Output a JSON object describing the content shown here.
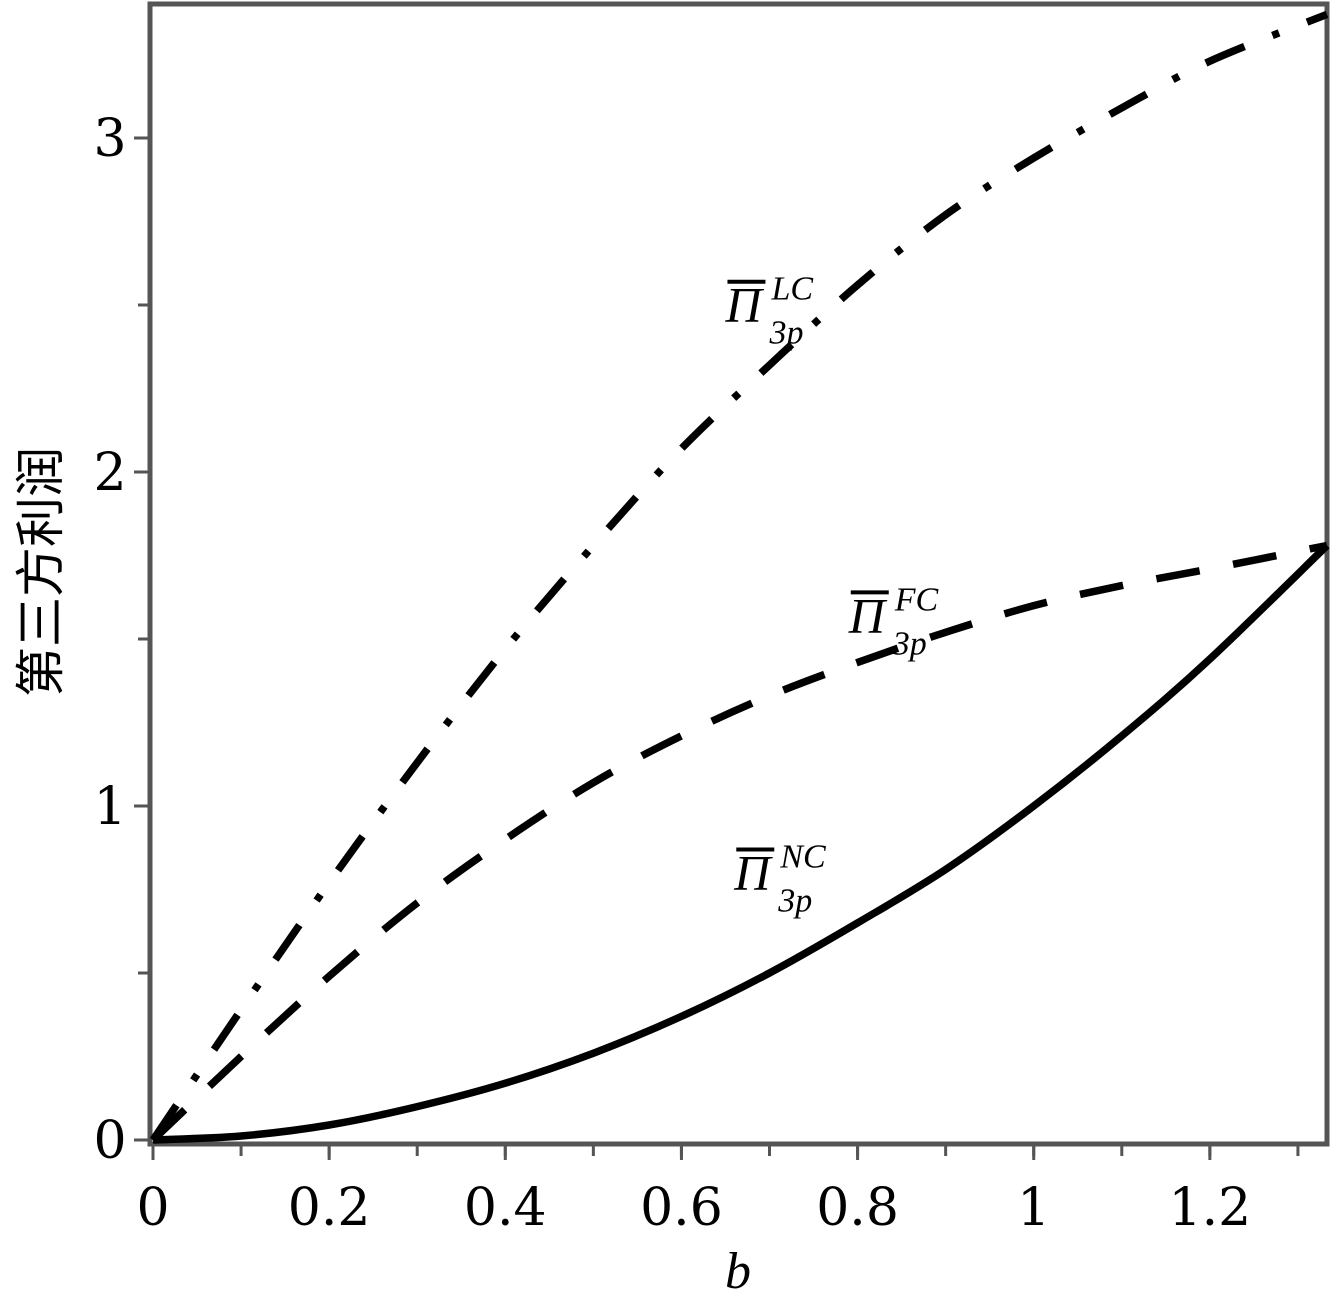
{
  "chart_data": {
    "type": "line",
    "xlabel": "b",
    "ylabel": "第三方利润",
    "xlim": [
      0,
      1.333
    ],
    "ylim": [
      0,
      3.4
    ],
    "x_ticks": [
      0,
      0.2,
      0.4,
      0.6,
      0.8,
      1,
      1.2
    ],
    "x_tick_labels": [
      "0",
      "0.2",
      "0.4",
      "0.6",
      "0.8",
      "1",
      "1.2"
    ],
    "y_ticks": [
      0,
      1,
      2,
      3
    ],
    "y_tick_labels": [
      "0",
      "1",
      "2",
      "3"
    ],
    "x_minor_step": 0.1,
    "y_minor_step": 0.5,
    "grid": false,
    "x": [
      0,
      0.1,
      0.2,
      0.3,
      0.4,
      0.5,
      0.6,
      0.7,
      0.8,
      0.9,
      1.0,
      1.1,
      1.2,
      1.333
    ],
    "series": [
      {
        "name": "LC",
        "style": "dashdot",
        "label_main": "Π",
        "label_sup": "LC",
        "label_sub": "3p",
        "values": [
          0,
          0.39,
          0.77,
          1.13,
          1.47,
          1.78,
          2.07,
          2.32,
          2.56,
          2.77,
          2.94,
          3.09,
          3.23,
          3.37
        ]
      },
      {
        "name": "FC",
        "style": "dashed",
        "label_main": "Π",
        "label_sup": "FC",
        "label_sub": "3p",
        "values": [
          0,
          0.25,
          0.49,
          0.71,
          0.9,
          1.07,
          1.21,
          1.33,
          1.43,
          1.52,
          1.6,
          1.66,
          1.71,
          1.78
        ]
      },
      {
        "name": "NC",
        "style": "solid",
        "label_main": "Π",
        "label_sup": "NC",
        "label_sub": "3p",
        "values": [
          0,
          0.012,
          0.045,
          0.1,
          0.17,
          0.26,
          0.37,
          0.5,
          0.65,
          0.81,
          1.0,
          1.21,
          1.44,
          1.78
        ]
      }
    ],
    "annotations": [
      {
        "series": "LC",
        "at": [
          0.65,
          2.45
        ]
      },
      {
        "series": "FC",
        "at": [
          0.79,
          1.52
        ]
      },
      {
        "series": "NC",
        "at": [
          0.66,
          0.75
        ]
      }
    ],
    "colors": {
      "line": "#000000",
      "frame": "#555555"
    }
  }
}
